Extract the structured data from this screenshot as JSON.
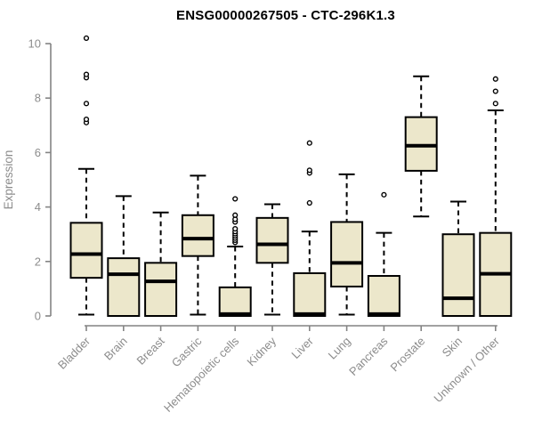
{
  "chart_data": {
    "type": "boxplot",
    "title": "ENSG00000267505 - CTC-296K1.3",
    "ylabel": "Expression",
    "xlabel": "",
    "ylim": [
      0,
      10.4
    ],
    "yticks": [
      0,
      2,
      4,
      6,
      8,
      10
    ],
    "grid": false,
    "legend": "none",
    "colors": {
      "box_fill": "#ece7cb",
      "box_border": "#000000",
      "median": "#000000",
      "whisker": "#000000",
      "outlier": "#000000",
      "axis": "#848484",
      "tick_label": "#8c8c8c",
      "title": "#000000",
      "background": "#ffffff"
    },
    "categories": [
      "Bladder",
      "Brain",
      "Breast",
      "Gastric",
      "Hematopoietic cells",
      "Kidney",
      "Liver",
      "Lung",
      "Pancreas",
      "Prostate",
      "Skin",
      "Unknown / Other"
    ],
    "boxes": [
      {
        "category": "Bladder",
        "whisker_low": 0.05,
        "q1": 1.4,
        "median": 2.27,
        "q3": 3.42,
        "whisker_high": 5.4,
        "outliers": [
          7.1,
          7.22,
          7.8,
          8.75,
          8.87,
          10.2
        ]
      },
      {
        "category": "Brain",
        "whisker_low": 0,
        "q1": 0,
        "median": 1.53,
        "q3": 2.12,
        "whisker_high": 4.4,
        "outliers": []
      },
      {
        "category": "Breast",
        "whisker_low": 0,
        "q1": 0,
        "median": 1.27,
        "q3": 1.95,
        "whisker_high": 3.8,
        "outliers": []
      },
      {
        "category": "Gastric",
        "whisker_low": 0.05,
        "q1": 2.2,
        "median": 2.84,
        "q3": 3.7,
        "whisker_high": 5.15,
        "outliers": []
      },
      {
        "category": "Hematopoietic cells",
        "whisker_low": 0,
        "q1": 0,
        "median": 0.07,
        "q3": 1.05,
        "whisker_high": 2.55,
        "outliers": [
          2.7,
          2.78,
          2.86,
          2.94,
          3.02,
          3.1,
          3.2,
          3.45,
          3.55,
          3.7,
          4.3
        ]
      },
      {
        "category": "Kidney",
        "whisker_low": 0.05,
        "q1": 1.95,
        "median": 2.63,
        "q3": 3.6,
        "whisker_high": 4.1,
        "outliers": []
      },
      {
        "category": "Liver",
        "whisker_low": 0,
        "q1": 0,
        "median": 0.07,
        "q3": 1.57,
        "whisker_high": 3.1,
        "outliers": [
          4.15,
          5.25,
          5.35,
          6.35
        ]
      },
      {
        "category": "Lung",
        "whisker_low": 0.05,
        "q1": 1.08,
        "median": 1.95,
        "q3": 3.45,
        "whisker_high": 5.2,
        "outliers": []
      },
      {
        "category": "Pancreas",
        "whisker_low": 0,
        "q1": 0,
        "median": 0.07,
        "q3": 1.47,
        "whisker_high": 3.05,
        "outliers": [
          4.45
        ]
      },
      {
        "category": "Prostate",
        "whisker_low": 3.65,
        "q1": 5.33,
        "median": 6.25,
        "q3": 7.3,
        "whisker_high": 8.8,
        "outliers": []
      },
      {
        "category": "Skin",
        "whisker_low": 0,
        "q1": 0,
        "median": 0.65,
        "q3": 3.0,
        "whisker_high": 4.2,
        "outliers": []
      },
      {
        "category": "Unknown / Other",
        "whisker_low": 0,
        "q1": 0,
        "median": 1.55,
        "q3": 3.05,
        "whisker_high": 7.55,
        "outliers": [
          7.8,
          8.25,
          8.7
        ]
      }
    ]
  }
}
